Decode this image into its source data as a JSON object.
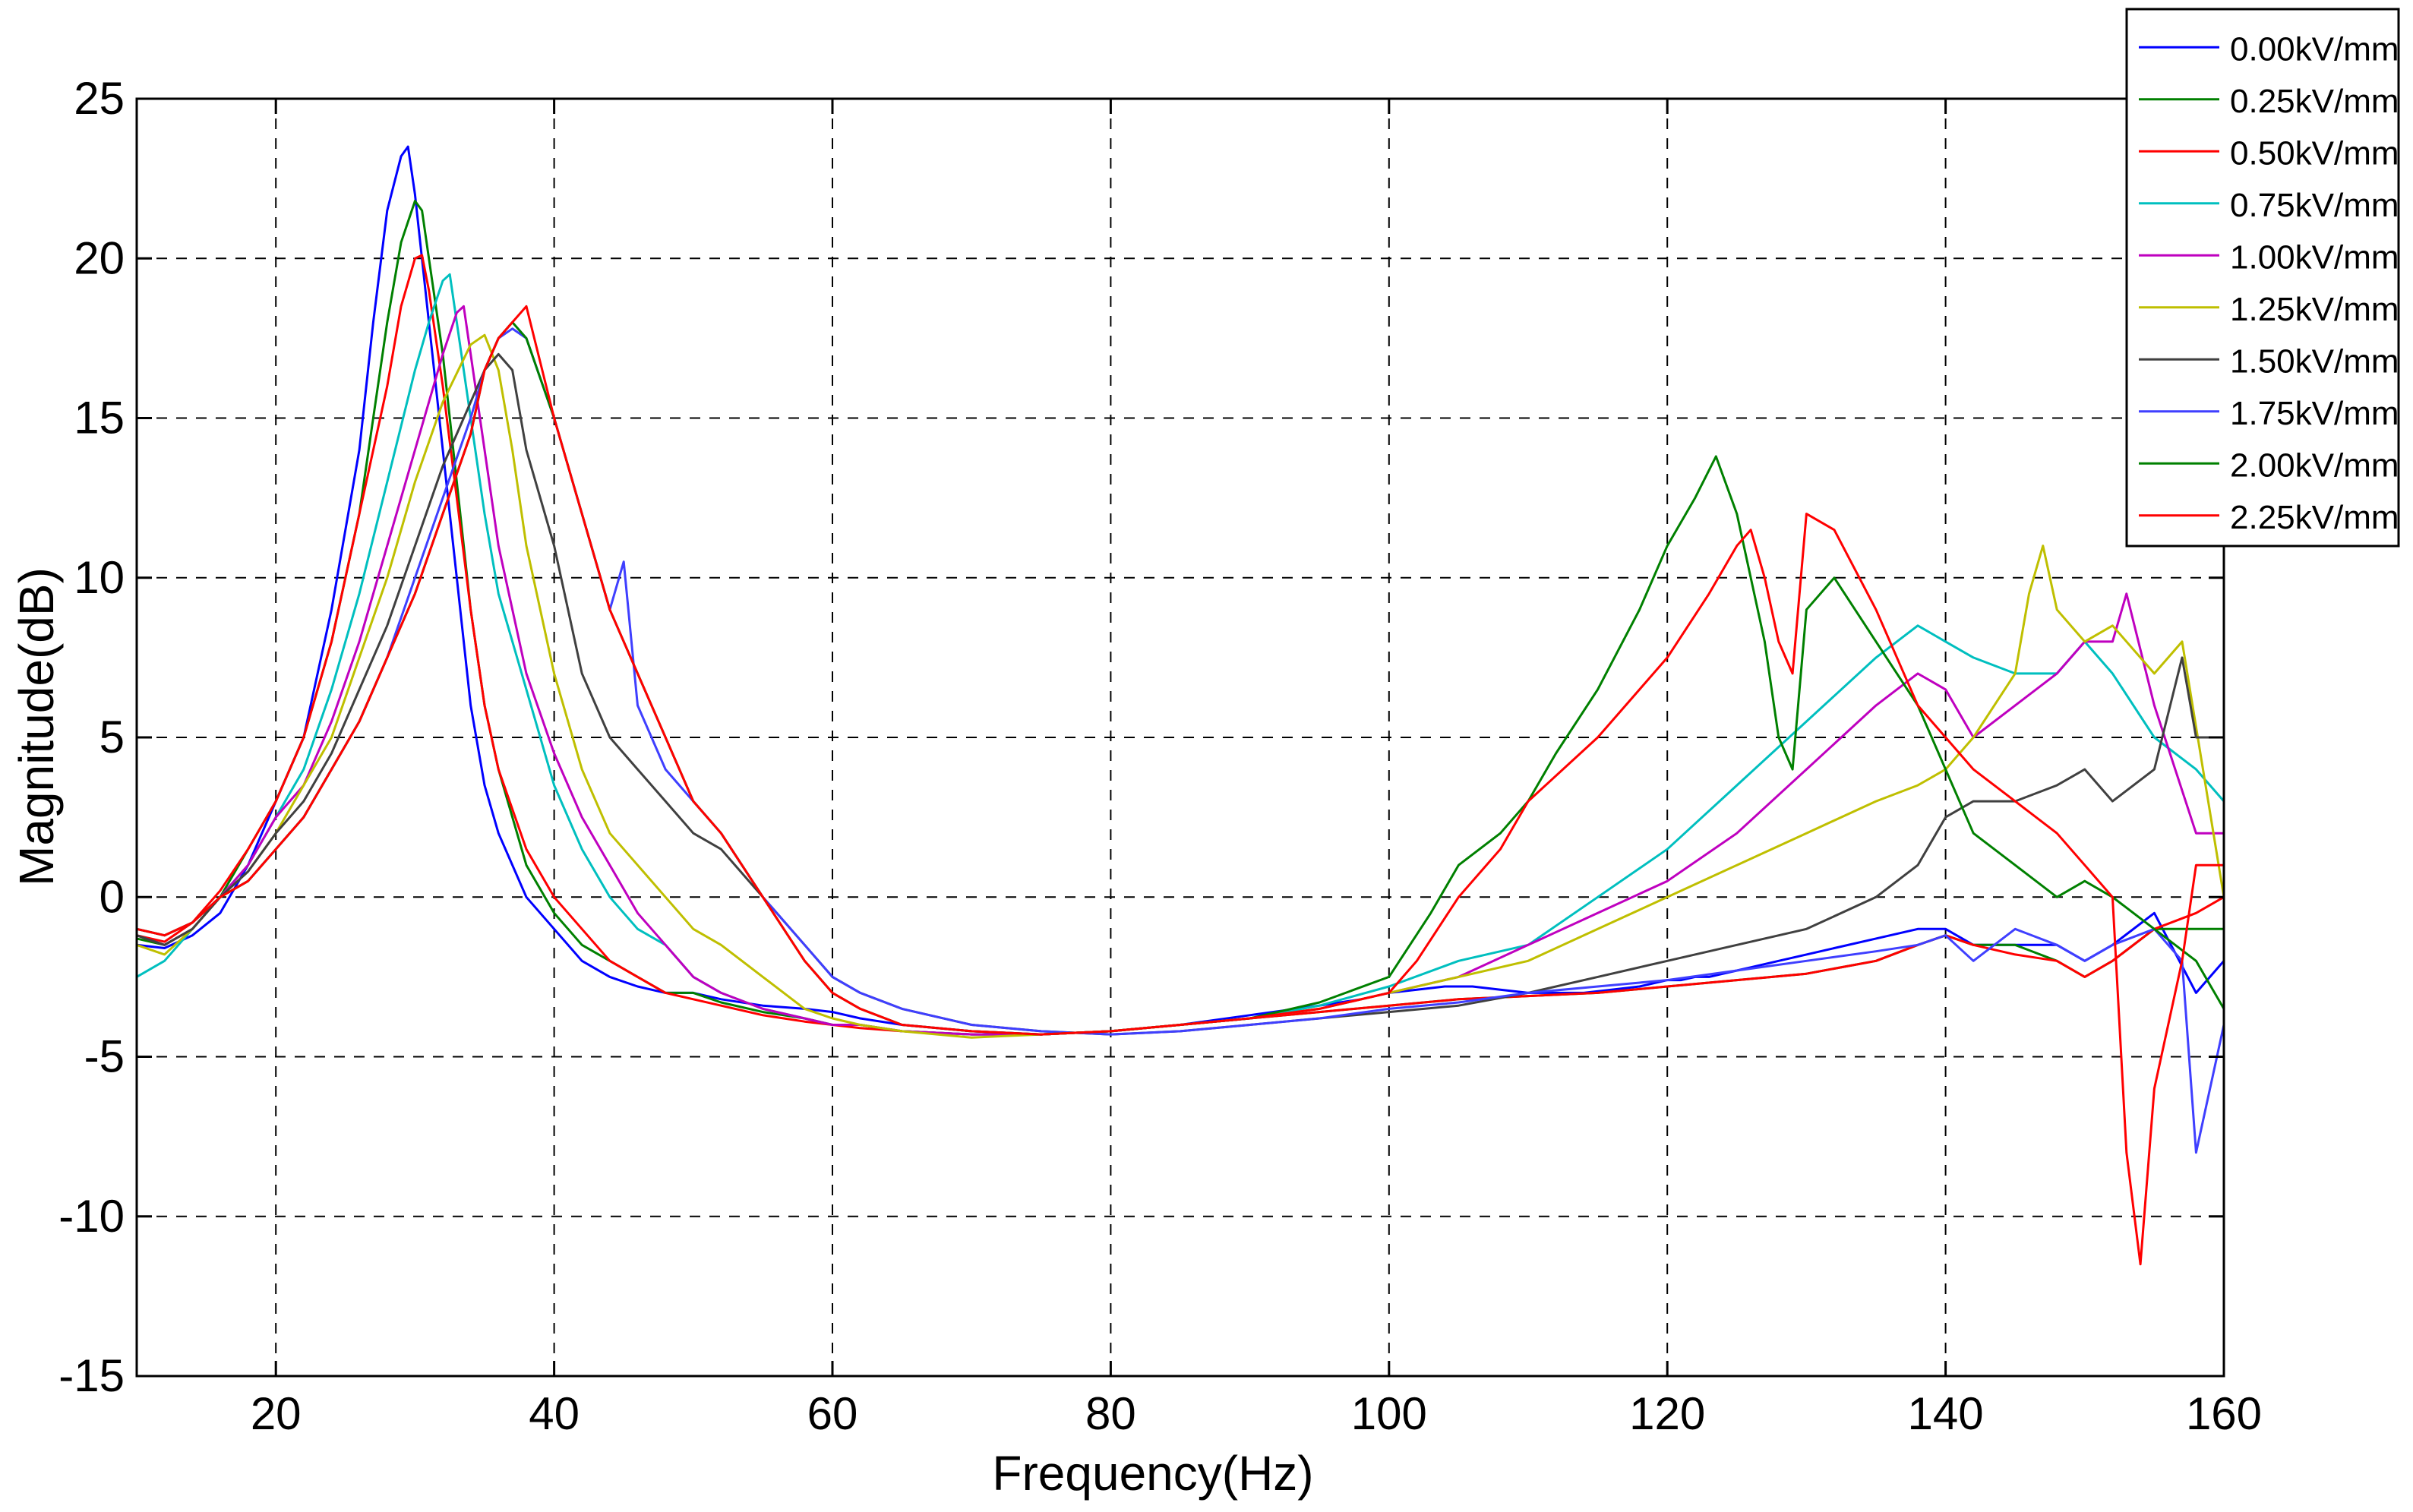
{
  "chart_data": {
    "type": "line",
    "title": "",
    "xlabel": "Frequency(Hz)",
    "ylabel": "Magnitude(dB)",
    "xlim": [
      10,
      160
    ],
    "ylim": [
      -15,
      25
    ],
    "xticks": [
      20,
      40,
      60,
      80,
      100,
      120,
      140,
      160
    ],
    "yticks": [
      -15,
      -10,
      -5,
      0,
      5,
      10,
      15,
      20,
      25
    ],
    "grid": true,
    "grid_style": "dashed",
    "legend_position": "top-right",
    "series": [
      {
        "name": "0.00kV/mm",
        "color": "#0000ff",
        "x": [
          10,
          12,
          14,
          16,
          18,
          20,
          22,
          24,
          26,
          27,
          28,
          29,
          29.5,
          30,
          31,
          32,
          33,
          34,
          35,
          36,
          38,
          40,
          42,
          44,
          46,
          48,
          50,
          52,
          55,
          58,
          60,
          62,
          65,
          70,
          75,
          80,
          85,
          90,
          95,
          98,
          100,
          102,
          104,
          106,
          108,
          110,
          112,
          114,
          116,
          118,
          120,
          121,
          122,
          123,
          124,
          125,
          126,
          128,
          130,
          132,
          135,
          138,
          140,
          142,
          145,
          148,
          150,
          152,
          155,
          158,
          160
        ],
        "y": [
          -1.5,
          -1.6,
          -1.2,
          -0.5,
          1,
          3,
          5,
          9,
          14,
          18,
          21.5,
          23.2,
          23.5,
          22,
          18,
          14,
          10,
          6,
          3.5,
          2,
          0,
          -1,
          -2,
          -2.5,
          -2.8,
          -3,
          -3,
          -3.2,
          -3.4,
          -3.5,
          -3.6,
          -3.8,
          -4,
          -4.2,
          -4.3,
          -4.2,
          -4,
          -3.7,
          -3.4,
          -3.2,
          -3,
          -2.9,
          -2.8,
          -2.8,
          -2.9,
          -3,
          -3,
          -3,
          -2.9,
          -2.8,
          -2.6,
          -2.6,
          -2.5,
          -2.5,
          -2.4,
          -2.3,
          -2.2,
          -2,
          -1.8,
          -1.6,
          -1.3,
          -1,
          -1,
          -1.5,
          -1.5,
          -1.5,
          -2,
          -1.5,
          -0.5,
          -3,
          -2
        ]
      },
      {
        "name": "0.25kV/mm",
        "color": "#008000",
        "x": [
          10,
          12,
          14,
          16,
          18,
          20,
          22,
          24,
          26,
          27,
          28,
          29,
          30,
          30.5,
          31,
          32,
          33,
          34,
          35,
          36,
          38,
          40,
          42,
          44,
          46,
          48,
          50,
          52,
          55,
          58,
          60,
          62,
          65,
          70,
          75,
          80,
          85,
          90,
          95,
          100,
          105,
          110,
          115,
          120,
          125,
          130,
          135,
          138,
          140,
          142,
          145,
          148,
          150,
          152,
          155,
          158,
          160
        ],
        "y": [
          -1.3,
          -1.5,
          -1,
          0,
          1.5,
          3,
          5,
          8,
          12,
          15,
          18,
          20.5,
          21.8,
          21.5,
          20,
          17,
          13,
          9,
          6,
          4,
          1,
          -0.5,
          -1.5,
          -2,
          -2.5,
          -3,
          -3,
          -3.3,
          -3.6,
          -3.8,
          -4,
          -4,
          -4.2,
          -4.3,
          -4.3,
          -4.2,
          -4,
          -3.8,
          -3.6,
          -3.4,
          -3.2,
          -3.1,
          -3,
          -2.8,
          -2.6,
          -2.4,
          -2,
          -1.5,
          -1.2,
          -1.5,
          -1.5,
          -2,
          -2.5,
          -2,
          -1,
          -1,
          -1
        ]
      },
      {
        "name": "0.50kV/mm",
        "color": "#ff0000",
        "x": [
          10,
          12,
          14,
          16,
          18,
          20,
          22,
          24,
          26,
          28,
          29,
          30,
          30.5,
          31,
          32,
          33,
          34,
          35,
          36,
          38,
          40,
          42,
          44,
          46,
          48,
          50,
          52,
          55,
          58,
          60,
          62,
          65,
          70,
          75,
          80,
          85,
          90,
          95,
          100,
          105,
          110,
          115,
          120,
          125,
          130,
          135,
          138,
          140,
          142,
          145,
          148,
          150,
          152,
          155,
          158,
          160
        ],
        "y": [
          -1.2,
          -1.4,
          -0.8,
          0.2,
          1.5,
          3,
          5,
          8,
          12,
          16,
          18.5,
          20,
          20.1,
          19,
          16,
          12.5,
          9,
          6,
          4,
          1.5,
          0,
          -1,
          -2,
          -2.5,
          -3,
          -3.2,
          -3.4,
          -3.7,
          -3.9,
          -4,
          -4.1,
          -4.2,
          -4.3,
          -4.3,
          -4.2,
          -4,
          -3.8,
          -3.6,
          -3.4,
          -3.2,
          -3.1,
          -3,
          -2.8,
          -2.6,
          -2.4,
          -2,
          -1.5,
          -1.2,
          -1.5,
          -1.8,
          -2,
          -2.5,
          -2,
          -1,
          -0.5,
          0
        ]
      },
      {
        "name": "0.75kV/mm",
        "color": "#00bfbf",
        "x": [
          10,
          12,
          14,
          16,
          18,
          20,
          22,
          24,
          26,
          28,
          30,
          31,
          32,
          32.5,
          33,
          34,
          35,
          36,
          38,
          40,
          42,
          44,
          46,
          48,
          50,
          52,
          55,
          58,
          60,
          62,
          65,
          70,
          75,
          80,
          85,
          90,
          95,
          100,
          105,
          110,
          115,
          120,
          125,
          130,
          135,
          138,
          140,
          142,
          145,
          148,
          150,
          152,
          155,
          158,
          160
        ],
        "y": [
          -2.5,
          -2,
          -1,
          0,
          1,
          2.5,
          4,
          6.5,
          9.5,
          13,
          16.5,
          18,
          19.3,
          19.5,
          18,
          15,
          12,
          9.5,
          6.5,
          3.5,
          1.5,
          0,
          -1,
          -1.5,
          -2.5,
          -3,
          -3.5,
          -3.8,
          -4,
          -4,
          -4.2,
          -4.3,
          -4.3,
          -4.2,
          -4,
          -3.8,
          -3.4,
          -2.8,
          -2,
          -1.5,
          0,
          1.5,
          3.5,
          5.5,
          7.5,
          8.5,
          8,
          7.5,
          7,
          7,
          8,
          7,
          5,
          4,
          3
        ]
      },
      {
        "name": "1.00kV/mm",
        "color": "#bf00bf",
        "x": [
          10,
          12,
          14,
          16,
          18,
          20,
          22,
          24,
          26,
          28,
          30,
          32,
          33,
          33.5,
          34,
          35,
          36,
          38,
          40,
          42,
          44,
          46,
          48,
          50,
          52,
          55,
          58,
          60,
          62,
          65,
          70,
          75,
          80,
          85,
          90,
          95,
          100,
          105,
          110,
          115,
          120,
          125,
          130,
          135,
          138,
          140,
          142,
          145,
          148,
          150,
          152,
          153,
          155,
          158,
          160
        ],
        "y": [
          -1.2,
          -1.5,
          -1,
          0,
          1,
          2.5,
          3.5,
          5.5,
          8,
          11,
          14,
          17,
          18.3,
          18.5,
          17,
          14,
          11,
          7,
          4.5,
          2.5,
          1,
          -0.5,
          -1.5,
          -2.5,
          -3,
          -3.5,
          -3.8,
          -4,
          -4,
          -4.2,
          -4.3,
          -4.3,
          -4.2,
          -4,
          -3.8,
          -3.5,
          -3,
          -2.5,
          -1.5,
          -0.5,
          0.5,
          2,
          4,
          6,
          7,
          6.5,
          5,
          6,
          7,
          8,
          8,
          9.5,
          6,
          2,
          2
        ]
      },
      {
        "name": "1.25kV/mm",
        "color": "#bfbf00",
        "x": [
          10,
          12,
          14,
          16,
          18,
          20,
          22,
          24,
          26,
          28,
          30,
          32,
          34,
          35,
          36,
          37,
          38,
          40,
          42,
          44,
          46,
          48,
          50,
          52,
          55,
          58,
          60,
          62,
          65,
          70,
          75,
          80,
          85,
          90,
          95,
          100,
          105,
          110,
          115,
          120,
          125,
          130,
          135,
          138,
          140,
          142,
          145,
          146,
          147,
          148,
          150,
          152,
          155,
          157,
          160
        ],
        "y": [
          -1.5,
          -1.8,
          -1,
          0,
          0.8,
          2,
          3.5,
          5,
          7.5,
          10,
          13,
          15.5,
          17.3,
          17.6,
          16.5,
          14,
          11,
          7,
          4,
          2,
          1,
          0,
          -1,
          -1.5,
          -2.5,
          -3.5,
          -3.8,
          -4,
          -4.2,
          -4.4,
          -4.3,
          -4.2,
          -4,
          -3.8,
          -3.5,
          -3,
          -2.5,
          -2,
          -1,
          0,
          1,
          2,
          3,
          3.5,
          4,
          5,
          7,
          9.5,
          11,
          9,
          8,
          8.5,
          7,
          8,
          0
        ]
      },
      {
        "name": "1.50kV/mm",
        "color": "#404040",
        "x": [
          10,
          12,
          14,
          16,
          18,
          20,
          22,
          24,
          26,
          28,
          30,
          32,
          34,
          35,
          36,
          37,
          38,
          40,
          42,
          44,
          46,
          48,
          50,
          52,
          55,
          58,
          60,
          62,
          65,
          70,
          75,
          80,
          85,
          90,
          95,
          100,
          105,
          110,
          115,
          120,
          125,
          130,
          135,
          138,
          140,
          142,
          145,
          148,
          150,
          152,
          155,
          157,
          158,
          160
        ],
        "y": [
          -1.2,
          -1.5,
          -1,
          0,
          0.8,
          2,
          3,
          4.5,
          6.5,
          8.5,
          11,
          13.5,
          15.5,
          16.5,
          17,
          16.5,
          14,
          11,
          7,
          5,
          4,
          3,
          2,
          1.5,
          0,
          -1.5,
          -2.5,
          -3,
          -3.5,
          -4,
          -4.2,
          -4.3,
          -4.2,
          -4,
          -3.8,
          -3.6,
          -3.4,
          -3,
          -2.5,
          -2,
          -1.5,
          -1,
          0,
          1,
          2.5,
          3,
          3,
          3.5,
          4,
          3,
          4,
          7.5,
          5,
          5
        ]
      },
      {
        "name": "1.75kV/mm",
        "color": "#3f3fff",
        "x": [
          10,
          12,
          14,
          16,
          18,
          20,
          22,
          24,
          26,
          28,
          30,
          32,
          34,
          35,
          36,
          37,
          38,
          40,
          42,
          44,
          45,
          46,
          48,
          50,
          52,
          55,
          58,
          60,
          62,
          65,
          70,
          75,
          80,
          85,
          90,
          95,
          100,
          105,
          110,
          115,
          120,
          125,
          130,
          135,
          138,
          140,
          142,
          145,
          148,
          150,
          152,
          155,
          157,
          158,
          160
        ],
        "y": [
          -1,
          -1.2,
          -0.8,
          0,
          0.5,
          1.5,
          2.5,
          4,
          5.5,
          7.5,
          10,
          12.5,
          15,
          16.5,
          17.5,
          17.8,
          17.5,
          15,
          12,
          9,
          10.5,
          6,
          4,
          3,
          2,
          0,
          -1.5,
          -2.5,
          -3,
          -3.5,
          -4,
          -4.2,
          -4.3,
          -4.2,
          -4,
          -3.8,
          -3.5,
          -3.3,
          -3,
          -2.8,
          -2.6,
          -2.3,
          -2,
          -1.7,
          -1.5,
          -1.2,
          -2,
          -1,
          -1.5,
          -2,
          -1.5,
          -1,
          -2,
          -8,
          -4
        ]
      },
      {
        "name": "2.00kV/mm",
        "color": "#008000",
        "x": [
          10,
          12,
          14,
          16,
          18,
          20,
          22,
          24,
          26,
          28,
          30,
          32,
          34,
          35,
          36,
          37,
          38,
          40,
          42,
          44,
          46,
          48,
          50,
          52,
          55,
          58,
          60,
          62,
          65,
          70,
          75,
          80,
          85,
          90,
          95,
          100,
          103,
          105,
          108,
          110,
          112,
          115,
          118,
          120,
          122,
          123.5,
          125,
          127,
          128,
          129,
          130,
          132,
          135,
          138,
          140,
          142,
          145,
          148,
          150,
          152,
          155,
          158,
          160
        ],
        "y": [
          -1,
          -1.2,
          -0.8,
          0,
          0.5,
          1.5,
          2.5,
          4,
          5.5,
          7.5,
          9.5,
          12,
          14.5,
          16.5,
          17.5,
          18,
          17.5,
          15,
          12,
          9,
          7,
          5,
          3,
          2,
          0,
          -2,
          -3,
          -3.5,
          -4,
          -4.2,
          -4.3,
          -4.2,
          -4,
          -3.8,
          -3.3,
          -2.5,
          -0.5,
          1,
          2,
          3,
          4.5,
          6.5,
          9,
          11,
          12.5,
          13.8,
          12,
          8,
          5,
          4,
          9,
          10,
          8,
          6,
          4,
          2,
          1,
          0,
          0.5,
          0,
          -1,
          -2,
          -3.5
        ]
      },
      {
        "name": "2.25kV/mm",
        "color": "#ff0000",
        "x": [
          10,
          12,
          14,
          16,
          18,
          20,
          22,
          24,
          26,
          28,
          30,
          32,
          34,
          35,
          36,
          37,
          38,
          40,
          42,
          44,
          46,
          48,
          50,
          52,
          55,
          58,
          60,
          62,
          65,
          70,
          75,
          80,
          85,
          90,
          95,
          100,
          102,
          105,
          108,
          110,
          115,
          120,
          123,
          125,
          126,
          127,
          128,
          129,
          130,
          132,
          135,
          138,
          140,
          142,
          145,
          148,
          150,
          152,
          153,
          154,
          155,
          157,
          158,
          160
        ],
        "y": [
          -1,
          -1.2,
          -0.8,
          0,
          0.5,
          1.5,
          2.5,
          4,
          5.5,
          7.5,
          9.5,
          12,
          14.5,
          16.5,
          17.5,
          18,
          18.5,
          15,
          12,
          9,
          7,
          5,
          3,
          2,
          0,
          -2,
          -3,
          -3.5,
          -4,
          -4.2,
          -4.3,
          -4.2,
          -4,
          -3.8,
          -3.5,
          -3,
          -2,
          0,
          1.5,
          3,
          5,
          7.5,
          9.5,
          11,
          11.5,
          10,
          8,
          7,
          12,
          11.5,
          9,
          6,
          5,
          4,
          3,
          2,
          1,
          0,
          -8,
          -11.5,
          -6,
          -2,
          1,
          1
        ]
      }
    ]
  }
}
